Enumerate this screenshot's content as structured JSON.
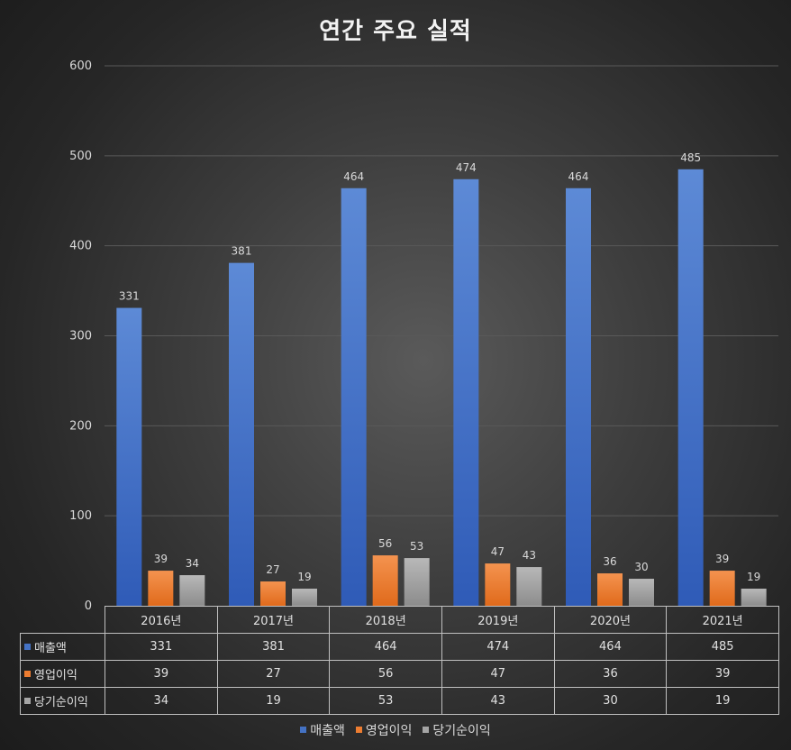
{
  "chart_data": {
    "type": "bar",
    "title": "연간 주요 실적",
    "categories": [
      "2016년",
      "2017년",
      "2018년",
      "2019년",
      "2020년",
      "2021년"
    ],
    "series": [
      {
        "name": "매출액",
        "values": [
          331,
          381,
          464,
          474,
          464,
          485
        ],
        "color": "#4472c4"
      },
      {
        "name": "영업이익",
        "values": [
          39,
          27,
          56,
          47,
          36,
          39
        ],
        "color": "#ed7d31"
      },
      {
        "name": "당기순이익",
        "values": [
          34,
          19,
          53,
          43,
          30,
          19
        ],
        "color": "#a5a5a5"
      }
    ],
    "yticks": [
      "0",
      "100",
      "200",
      "300",
      "400",
      "500",
      "600"
    ],
    "ylim": [
      0,
      600
    ],
    "grid": true,
    "data_table": true,
    "legend_position": "bottom"
  }
}
